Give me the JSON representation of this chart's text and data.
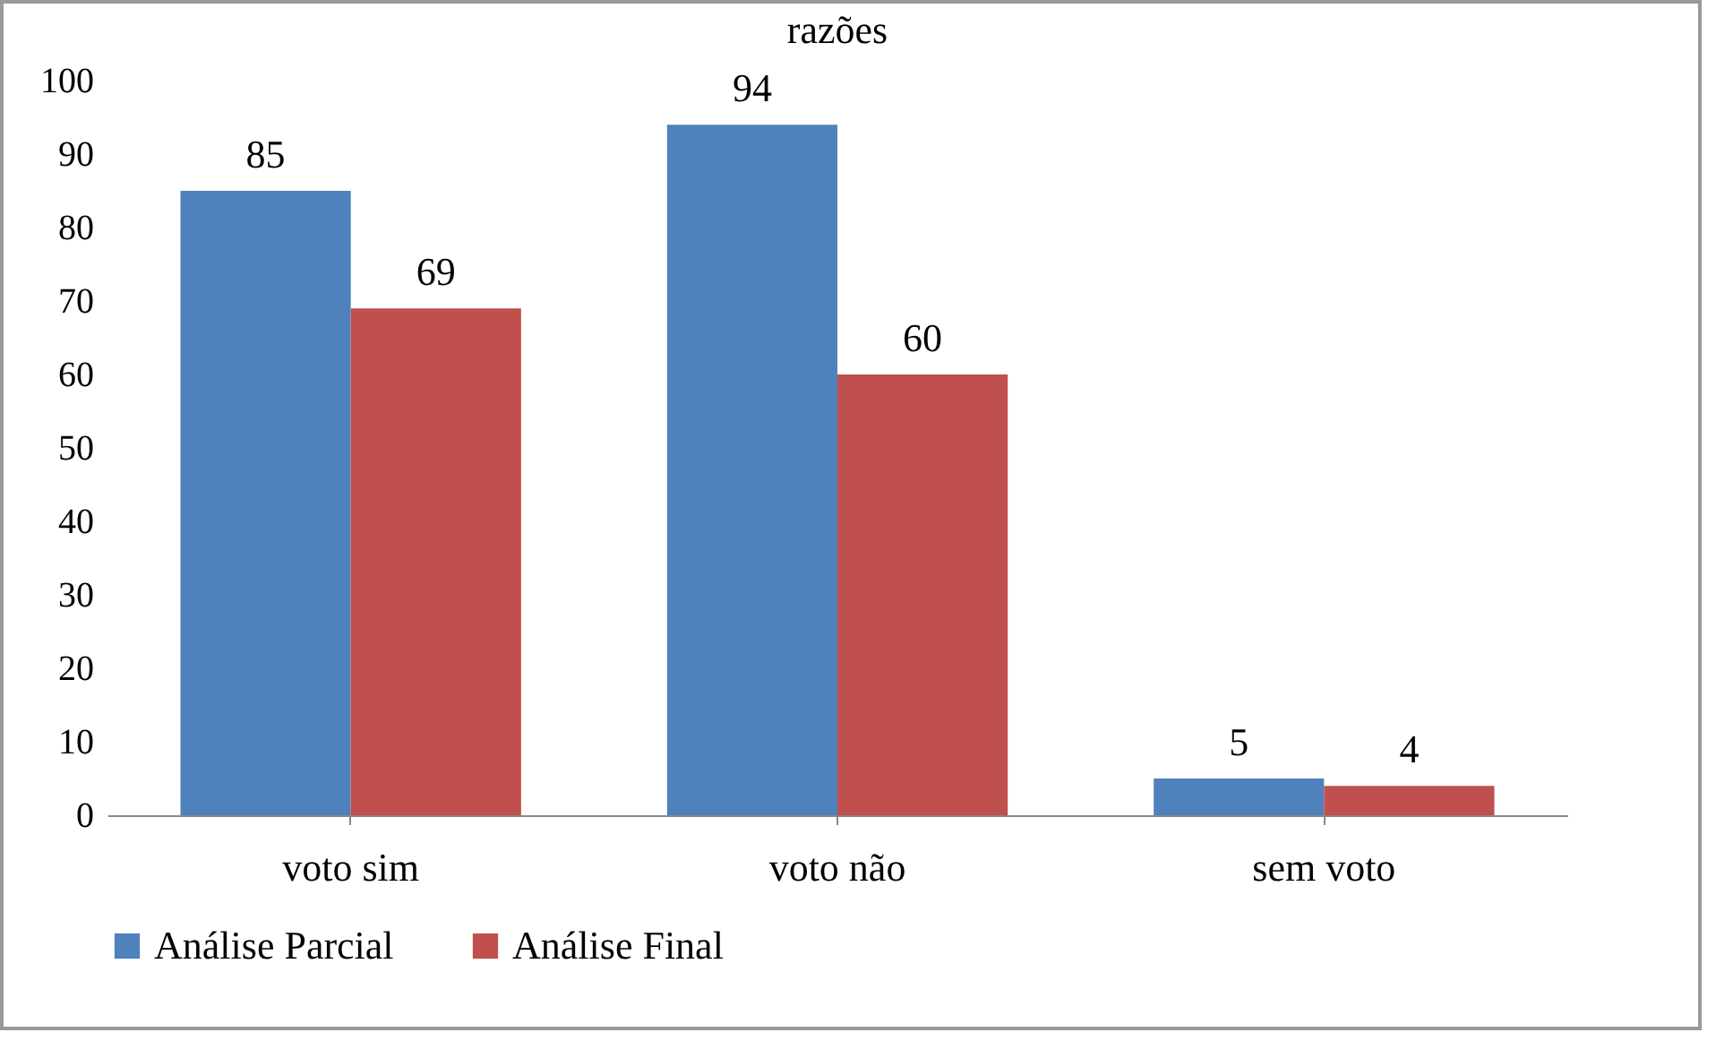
{
  "chart_data": {
    "type": "bar",
    "title": "razões",
    "categories": [
      "voto sim",
      "voto não",
      "sem voto"
    ],
    "series": [
      {
        "name": "Análise Parcial",
        "color": "#4f81bd",
        "values": [
          85,
          94,
          5
        ]
      },
      {
        "name": "Análise Final",
        "color": "#c0504d",
        "values": [
          69,
          60,
          4
        ]
      }
    ],
    "ylim": [
      0,
      100
    ],
    "yticks": [
      0,
      10,
      20,
      30,
      40,
      50,
      60,
      70,
      80,
      90,
      100
    ],
    "data_labels": true,
    "legend": "bottom",
    "grid": false
  }
}
